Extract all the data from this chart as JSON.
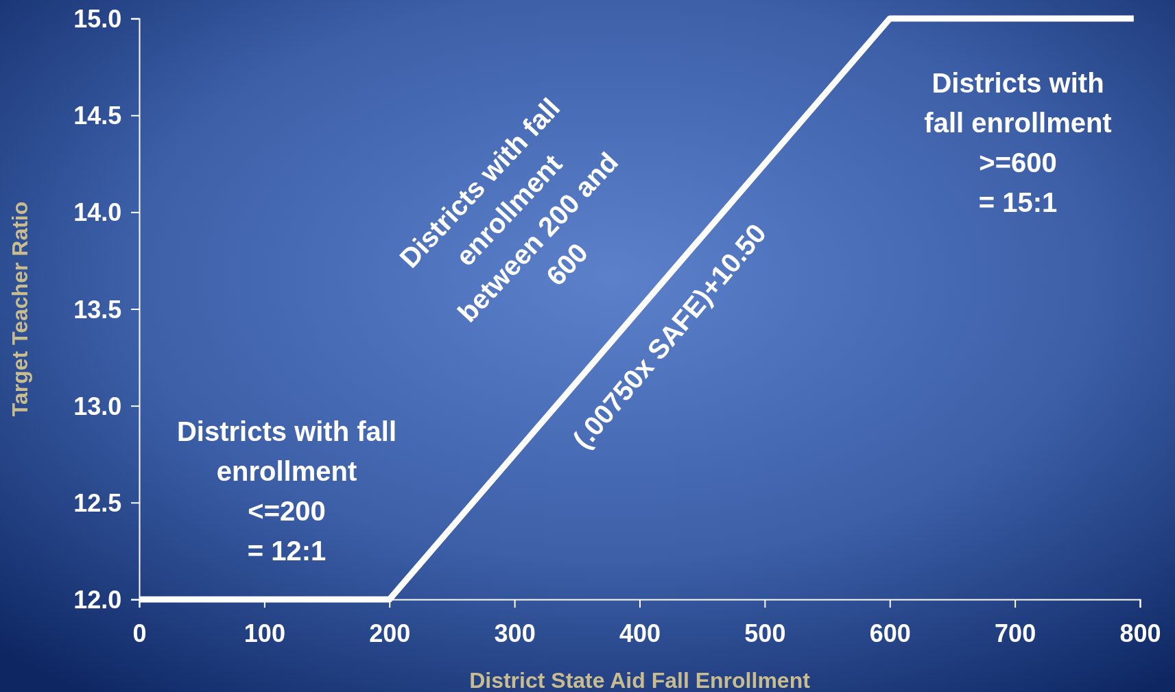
{
  "chart_data": {
    "type": "line",
    "xlabel": "District State Aid Fall Enrollment",
    "ylabel": "Target Teacher Ratio",
    "x": [
      0,
      200,
      600,
      795
    ],
    "series": [
      {
        "color": "#ffffff",
        "values": [
          12,
          12,
          15,
          15
        ]
      }
    ],
    "xlim": [
      0,
      800
    ],
    "xticks": [
      0,
      100,
      200,
      300,
      400,
      500,
      600,
      700,
      800
    ],
    "ylim": [
      12,
      15
    ],
    "yticks": [
      {
        "value": 12,
        "label": "12.0"
      },
      {
        "value": 12.5,
        "label": "12.5"
      },
      {
        "value": 13,
        "label": "13.0"
      },
      {
        "value": 13.5,
        "label": "13.5"
      },
      {
        "value": 14,
        "label": "14.0"
      },
      {
        "value": 14.5,
        "label": "14.5"
      },
      {
        "value": 15,
        "label": "15.0"
      }
    ],
    "grid": false,
    "marker": "none",
    "line_style": "solid",
    "annotations": [
      "Districts with fall\nenrollment\n<=200\n= 12:1",
      "Districts with fall\nenrollment\nbetween 200 and\n600",
      "(.00750x SAFE)+10.50",
      "Districts with\nfall enrollment\n>=600\n= 15:1"
    ]
  }
}
